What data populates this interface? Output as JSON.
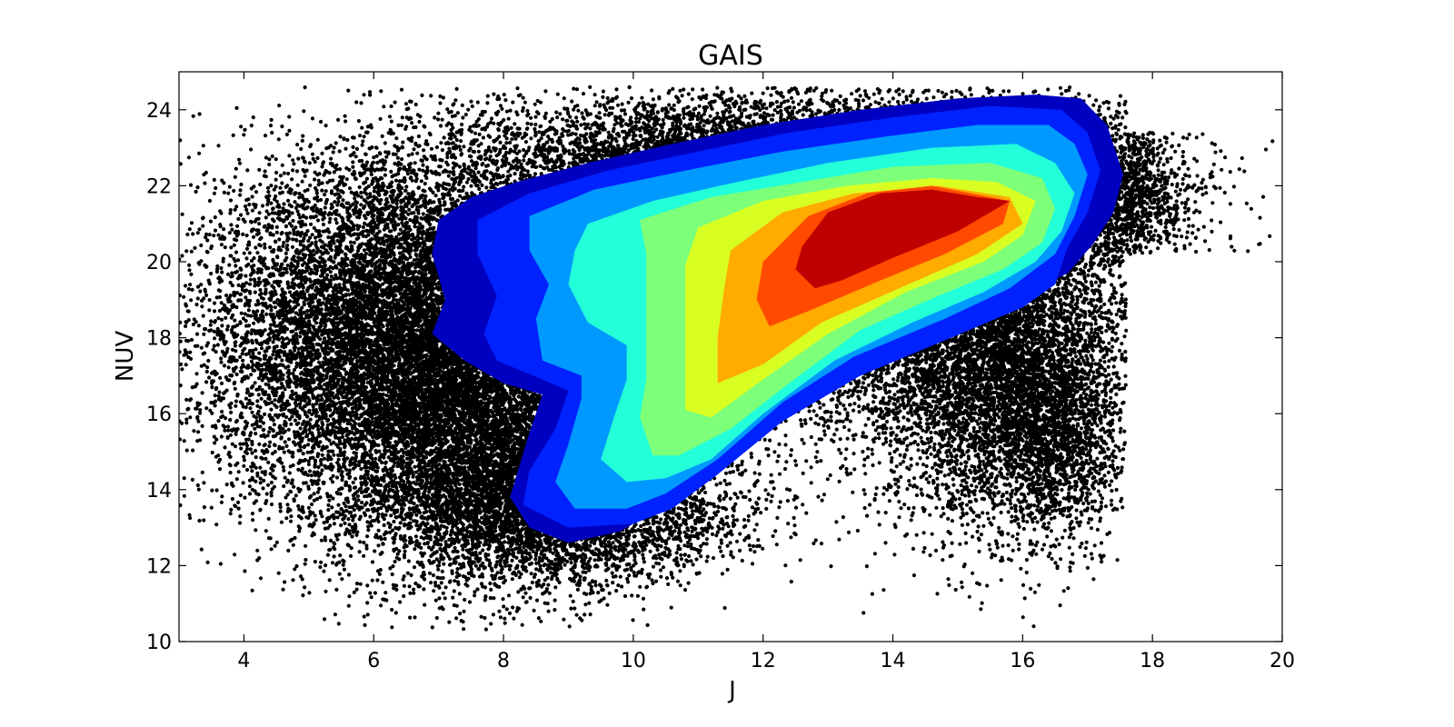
{
  "chart_data": {
    "type": "scatter",
    "title": "GAIS",
    "xlabel": "J",
    "ylabel": "NUV",
    "xlim": [
      3,
      20
    ],
    "ylim": [
      10,
      25
    ],
    "xticks": [
      4,
      6,
      8,
      10,
      12,
      14,
      16,
      18,
      20
    ],
    "yticks": [
      10,
      12,
      14,
      16,
      18,
      20,
      22,
      24
    ],
    "grid": false,
    "scatter_color": "#000000",
    "contour_colors": [
      "#0000c0",
      "#0022ff",
      "#0099ff",
      "#22ffd9",
      "#7dff7a",
      "#d9ff22",
      "#ffab00",
      "#ff4a00",
      "#c00000"
    ],
    "contour_levels": [
      [
        [
          7.0,
          21.1
        ],
        [
          7.5,
          21.7
        ],
        [
          8.2,
          22.1
        ],
        [
          9.3,
          22.6
        ],
        [
          10.6,
          23.1
        ],
        [
          12.0,
          23.6
        ],
        [
          13.5,
          24.0
        ],
        [
          15.0,
          24.3
        ],
        [
          16.2,
          24.4
        ],
        [
          16.9,
          24.3
        ],
        [
          17.3,
          23.6
        ],
        [
          17.55,
          22.3
        ],
        [
          17.4,
          21.3
        ],
        [
          17.1,
          20.5
        ],
        [
          16.7,
          19.7
        ],
        [
          16.1,
          19.2
        ],
        [
          15.1,
          18.5
        ],
        [
          13.7,
          17.5
        ],
        [
          12.4,
          16.3
        ],
        [
          11.4,
          14.9
        ],
        [
          10.6,
          13.7
        ],
        [
          9.8,
          12.9
        ],
        [
          9.0,
          12.6
        ],
        [
          8.4,
          13.0
        ],
        [
          8.1,
          13.8
        ],
        [
          8.4,
          15.5
        ],
        [
          8.6,
          16.5
        ],
        [
          8.0,
          16.8
        ],
        [
          7.4,
          17.4
        ],
        [
          6.9,
          18.1
        ],
        [
          7.1,
          19.0
        ],
        [
          6.9,
          20.2
        ],
        [
          7.0,
          21.1
        ]
      ],
      [
        [
          7.6,
          21.1
        ],
        [
          8.4,
          21.8
        ],
        [
          9.6,
          22.4
        ],
        [
          11.0,
          22.9
        ],
        [
          12.4,
          23.4
        ],
        [
          14.0,
          23.8
        ],
        [
          15.5,
          24.1
        ],
        [
          16.6,
          24.0
        ],
        [
          17.0,
          23.4
        ],
        [
          17.2,
          22.4
        ],
        [
          17.0,
          21.3
        ],
        [
          16.7,
          20.4
        ],
        [
          16.5,
          19.4
        ],
        [
          16.0,
          18.8
        ],
        [
          14.9,
          18.0
        ],
        [
          13.5,
          17.0
        ],
        [
          12.3,
          15.8
        ],
        [
          11.3,
          14.4
        ],
        [
          10.6,
          13.5
        ],
        [
          10.0,
          13.1
        ],
        [
          9.0,
          13.0
        ],
        [
          8.3,
          13.6
        ],
        [
          8.4,
          14.5
        ],
        [
          8.8,
          15.6
        ],
        [
          9.0,
          16.6
        ],
        [
          8.6,
          16.9
        ],
        [
          7.9,
          17.4
        ],
        [
          7.7,
          18.1
        ],
        [
          7.9,
          19.1
        ],
        [
          7.6,
          20.2
        ],
        [
          7.6,
          21.1
        ]
      ],
      [
        [
          8.4,
          21.2
        ],
        [
          9.4,
          21.9
        ],
        [
          10.8,
          22.4
        ],
        [
          12.3,
          22.9
        ],
        [
          13.9,
          23.3
        ],
        [
          15.3,
          23.6
        ],
        [
          16.4,
          23.6
        ],
        [
          16.8,
          23.1
        ],
        [
          17.0,
          22.3
        ],
        [
          16.8,
          21.2
        ],
        [
          16.5,
          20.2
        ],
        [
          15.8,
          19.3
        ],
        [
          14.8,
          18.5
        ],
        [
          13.4,
          17.5
        ],
        [
          12.3,
          16.3
        ],
        [
          11.3,
          14.8
        ],
        [
          10.5,
          13.9
        ],
        [
          9.9,
          13.5
        ],
        [
          9.1,
          13.5
        ],
        [
          8.8,
          14.2
        ],
        [
          9.0,
          15.2
        ],
        [
          9.2,
          16.4
        ],
        [
          9.2,
          17.0
        ],
        [
          8.6,
          17.4
        ],
        [
          8.5,
          18.5
        ],
        [
          8.7,
          19.4
        ],
        [
          8.4,
          20.3
        ],
        [
          8.4,
          21.2
        ]
      ],
      [
        [
          9.3,
          21.0
        ],
        [
          10.3,
          21.6
        ],
        [
          11.6,
          22.1
        ],
        [
          13.0,
          22.6
        ],
        [
          14.6,
          23.0
        ],
        [
          15.9,
          23.1
        ],
        [
          16.5,
          22.6
        ],
        [
          16.8,
          21.8
        ],
        [
          16.6,
          20.8
        ],
        [
          16.2,
          20.0
        ],
        [
          15.4,
          19.2
        ],
        [
          14.3,
          18.4
        ],
        [
          13.1,
          17.4
        ],
        [
          12.0,
          16.0
        ],
        [
          11.2,
          14.8
        ],
        [
          10.5,
          14.3
        ],
        [
          9.9,
          14.2
        ],
        [
          9.5,
          14.8
        ],
        [
          9.7,
          15.9
        ],
        [
          9.9,
          16.9
        ],
        [
          9.9,
          17.8
        ],
        [
          9.3,
          18.4
        ],
        [
          9.0,
          19.4
        ],
        [
          9.1,
          20.3
        ],
        [
          9.3,
          21.0
        ]
      ],
      [
        [
          10.1,
          21.1
        ],
        [
          11.2,
          21.7
        ],
        [
          12.6,
          22.1
        ],
        [
          14.0,
          22.5
        ],
        [
          15.5,
          22.6
        ],
        [
          16.3,
          22.2
        ],
        [
          16.5,
          21.4
        ],
        [
          16.3,
          20.5
        ],
        [
          15.7,
          19.8
        ],
        [
          14.7,
          19.1
        ],
        [
          13.5,
          18.2
        ],
        [
          12.4,
          16.8
        ],
        [
          11.5,
          15.6
        ],
        [
          10.7,
          14.9
        ],
        [
          10.3,
          14.9
        ],
        [
          10.1,
          15.9
        ],
        [
          10.2,
          16.9
        ],
        [
          10.2,
          18.0
        ],
        [
          10.2,
          19.1
        ],
        [
          10.2,
          20.2
        ],
        [
          10.1,
          21.1
        ]
      ],
      [
        [
          11.0,
          20.9
        ],
        [
          12.0,
          21.6
        ],
        [
          13.3,
          22.0
        ],
        [
          14.6,
          22.2
        ],
        [
          15.6,
          22.1
        ],
        [
          16.2,
          21.6
        ],
        [
          16.0,
          20.7
        ],
        [
          15.4,
          20.0
        ],
        [
          14.2,
          19.2
        ],
        [
          13.0,
          18.1
        ],
        [
          12.0,
          16.9
        ],
        [
          11.2,
          15.9
        ],
        [
          10.8,
          16.1
        ],
        [
          10.8,
          17.2
        ],
        [
          10.8,
          18.5
        ],
        [
          10.8,
          19.9
        ],
        [
          11.0,
          20.9
        ]
      ],
      [
        [
          11.5,
          20.3
        ],
        [
          12.3,
          21.3
        ],
        [
          13.4,
          21.8
        ],
        [
          14.7,
          22.0
        ],
        [
          15.8,
          21.7
        ],
        [
          16.0,
          21.0
        ],
        [
          15.3,
          20.2
        ],
        [
          14.1,
          19.3
        ],
        [
          12.9,
          18.4
        ],
        [
          12.0,
          17.3
        ],
        [
          11.3,
          16.8
        ],
        [
          11.3,
          18.0
        ],
        [
          11.4,
          19.3
        ],
        [
          11.5,
          20.3
        ]
      ],
      [
        [
          12.0,
          20.0
        ],
        [
          12.7,
          21.2
        ],
        [
          13.6,
          21.8
        ],
        [
          14.6,
          22.0
        ],
        [
          15.8,
          21.6
        ],
        [
          15.7,
          21.0
        ],
        [
          14.8,
          20.2
        ],
        [
          13.8,
          19.5
        ],
        [
          12.7,
          18.7
        ],
        [
          12.1,
          18.3
        ],
        [
          11.9,
          19.0
        ],
        [
          12.0,
          20.0
        ]
      ],
      [
        [
          12.6,
          20.4
        ],
        [
          13.0,
          21.3
        ],
        [
          13.8,
          21.8
        ],
        [
          14.6,
          21.9
        ],
        [
          15.3,
          21.7
        ],
        [
          15.8,
          21.6
        ],
        [
          15.0,
          20.8
        ],
        [
          14.0,
          20.1
        ],
        [
          13.2,
          19.5
        ],
        [
          12.8,
          19.3
        ],
        [
          12.5,
          19.8
        ],
        [
          12.6,
          20.4
        ]
      ]
    ]
  }
}
